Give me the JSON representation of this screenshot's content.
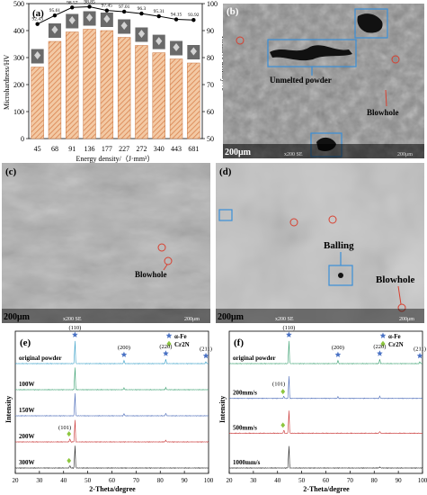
{
  "panels": {
    "a": {
      "label": "(a)"
    },
    "b": {
      "label": "(b)",
      "annotations": [
        "Unmelted powder",
        "Blowhole"
      ],
      "scale_bar": "200μm",
      "sem_info": "x200 SE",
      "sem_scale": "200μm"
    },
    "c": {
      "label": "(c)",
      "annotations": [
        "Blowhole"
      ],
      "scale_bar": "200μm",
      "sem_info": "x200 SE",
      "sem_scale": "200μm"
    },
    "d": {
      "label": "(d)",
      "annotations": [
        "Balling",
        "Blowhole"
      ],
      "scale_bar": "200μm",
      "sem_info": "x200 SE",
      "sem_scale": "200μm"
    },
    "e": {
      "label": "(e)"
    },
    "f": {
      "label": "(f)"
    }
  },
  "chart_data": [
    {
      "panel": "a",
      "type": "bar",
      "categories": [
        "45",
        "68",
        "91",
        "136",
        "177",
        "227",
        "272",
        "340",
        "443",
        "681"
      ],
      "series": [
        {
          "name": "Microhardness",
          "type": "bar",
          "values": [
            265,
            360,
            395,
            405,
            400,
            375,
            345,
            318,
            295,
            280
          ]
        },
        {
          "name": "Relative density",
          "type": "line",
          "values": [
            92.43,
            95.61,
            98.57,
            98.85,
            97.45,
            97.01,
            96.3,
            95.31,
            94.15,
            93.92
          ],
          "point_labels": [
            "92.43",
            "95.61",
            "98.57",
            "98.85",
            "97.45",
            "97.01",
            "96.3",
            "95.31",
            "94.15",
            "93.92"
          ]
        }
      ],
      "xlabel": "Energy density/（J·mm³）",
      "ylabel": "Microhardness/HV",
      "y2label": "Relative density/%",
      "ylim": [
        0,
        500
      ],
      "y2lim": [
        50,
        100
      ],
      "yticks": [
        "0",
        "100",
        "200",
        "300",
        "400",
        "500"
      ],
      "y2ticks": [
        "50",
        "60",
        "70",
        "80",
        "90",
        "100"
      ]
    },
    {
      "panel": "e",
      "type": "line",
      "xlabel": "2-Theta/degree",
      "ylabel": "Intensity",
      "xlim": [
        20,
        100
      ],
      "xticks": [
        "20",
        "30",
        "40",
        "50",
        "60",
        "70",
        "80",
        "90",
        "100"
      ],
      "legend": [
        {
          "name": "α-Fe",
          "marker": "star",
          "color": "#4a72c4"
        },
        {
          "name": "Cr2N",
          "marker": "diamond",
          "color": "#8dc63f"
        }
      ],
      "peaks_alpha_fe": [
        {
          "two_theta": 44.7,
          "label": "(110)"
        },
        {
          "two_theta": 65.0,
          "label": "(200)"
        },
        {
          "two_theta": 82.3,
          "label": "(220)"
        },
        {
          "two_theta": 98.9,
          "label": "(211)"
        }
      ],
      "peaks_cr2n": [
        {
          "two_theta": 42.6,
          "label": "(101)"
        }
      ],
      "series": [
        {
          "name": "original powder",
          "color": "#3aa0c8",
          "peaks": [
            [
              44.7,
              1.0
            ],
            [
              65.0,
              0.15
            ],
            [
              82.3,
              0.2
            ],
            [
              98.9,
              0.1
            ]
          ]
        },
        {
          "name": "100W",
          "color": "#3aa070",
          "peaks": [
            [
              44.7,
              1.0
            ],
            [
              65.0,
              0.08
            ],
            [
              82.3,
              0.1
            ]
          ]
        },
        {
          "name": "150W",
          "color": "#4a6ab8",
          "peaks": [
            [
              44.7,
              1.0
            ],
            [
              65.0,
              0.1
            ],
            [
              82.3,
              0.12
            ]
          ]
        },
        {
          "name": "200W",
          "color": "#c83030",
          "peaks": [
            [
              42.6,
              0.15
            ],
            [
              44.7,
              1.0
            ],
            [
              82.3,
              0.08
            ]
          ]
        },
        {
          "name": "300W",
          "color": "#222222",
          "peaks": [
            [
              42.6,
              0.12
            ],
            [
              44.7,
              1.0
            ]
          ]
        }
      ]
    },
    {
      "panel": "f",
      "type": "line",
      "xlabel": "2-Theta/degree",
      "ylabel": "Intensity",
      "xlim": [
        20,
        100
      ],
      "xticks": [
        "20",
        "30",
        "40",
        "50",
        "60",
        "70",
        "80",
        "90",
        "100"
      ],
      "legend": [
        {
          "name": "α-Fe",
          "marker": "star",
          "color": "#4a72c4"
        },
        {
          "name": "Cr2N",
          "marker": "diamond",
          "color": "#8dc63f"
        }
      ],
      "peaks_alpha_fe": [
        {
          "two_theta": 44.7,
          "label": "(110)"
        },
        {
          "two_theta": 65.0,
          "label": "(200)"
        },
        {
          "two_theta": 82.3,
          "label": "(220)"
        },
        {
          "two_theta": 98.9,
          "label": "(211)"
        }
      ],
      "peaks_cr2n": [
        {
          "two_theta": 42.6,
          "label": "(101)"
        }
      ],
      "series": [
        {
          "name": "original powder",
          "color": "#3aa070",
          "peaks": [
            [
              44.7,
              1.0
            ],
            [
              65.0,
              0.15
            ],
            [
              82.3,
              0.2
            ],
            [
              98.9,
              0.1
            ]
          ]
        },
        {
          "name": "200mm/s",
          "color": "#4a6ab8",
          "peaks": [
            [
              42.6,
              0.1
            ],
            [
              44.7,
              1.0
            ],
            [
              65.0,
              0.08
            ],
            [
              82.3,
              0.1
            ]
          ]
        },
        {
          "name": "500mm/s",
          "color": "#c83030",
          "peaks": [
            [
              42.6,
              0.15
            ],
            [
              44.7,
              1.0
            ],
            [
              82.3,
              0.08
            ]
          ]
        },
        {
          "name": "1000mm/s",
          "color": "#222222",
          "peaks": [
            [
              44.7,
              1.0
            ],
            [
              82.3,
              0.05
            ]
          ]
        }
      ]
    }
  ]
}
